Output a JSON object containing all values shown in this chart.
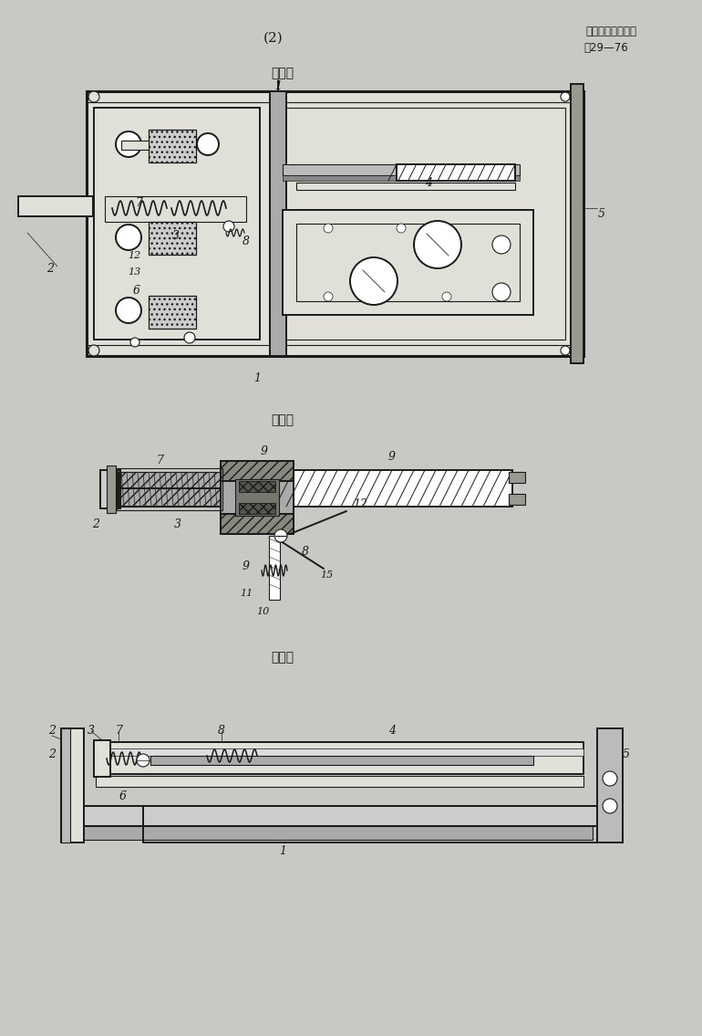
{
  "bg_color": "#c8c8c4",
  "paper_color": "#e0dfd8",
  "line_color": "#1a1a1a",
  "dark_color": "#2a2a2a",
  "gray_color": "#888880",
  "hatch_color": "#555550",
  "header_text_1": "(2)",
  "header_text_2": "実用新案出願公告",
  "header_text_3": "映29—76",
  "fig1_title": "第１図",
  "fig2_title": "第２図",
  "fig3_title": "第３図"
}
